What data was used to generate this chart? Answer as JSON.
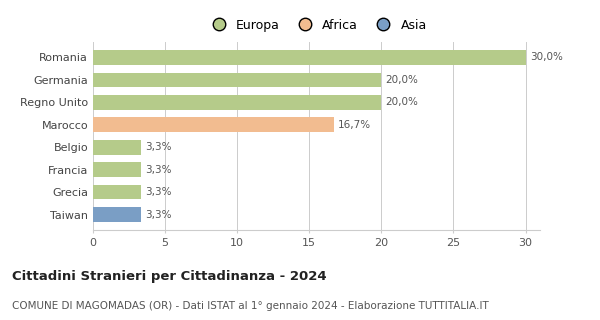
{
  "categories": [
    "Romania",
    "Germania",
    "Regno Unito",
    "Marocco",
    "Belgio",
    "Francia",
    "Grecia",
    "Taiwan"
  ],
  "values": [
    30.0,
    20.0,
    20.0,
    16.7,
    3.3,
    3.3,
    3.3,
    3.3
  ],
  "labels": [
    "30,0%",
    "20,0%",
    "20,0%",
    "16,7%",
    "3,3%",
    "3,3%",
    "3,3%",
    "3,3%"
  ],
  "bar_colors": [
    "#b5cb8a",
    "#b5cb8a",
    "#b5cb8a",
    "#f2bc90",
    "#b5cb8a",
    "#b5cb8a",
    "#b5cb8a",
    "#7a9ec5"
  ],
  "legend_items": [
    {
      "label": "Europa",
      "color": "#b5cb8a"
    },
    {
      "label": "Africa",
      "color": "#f2bc90"
    },
    {
      "label": "Asia",
      "color": "#7a9ec5"
    }
  ],
  "xlim": [
    0,
    31
  ],
  "xticks": [
    0,
    5,
    10,
    15,
    20,
    25,
    30
  ],
  "title": "Cittadini Stranieri per Cittadinanza - 2024",
  "subtitle": "COMUNE DI MAGOMADAS (OR) - Dati ISTAT al 1° gennaio 2024 - Elaborazione TUTTITALIA.IT",
  "title_fontsize": 9.5,
  "subtitle_fontsize": 7.5,
  "background_color": "#ffffff",
  "grid_color": "#cccccc",
  "bar_height": 0.65,
  "label_fontsize": 7.5,
  "tick_fontsize": 8,
  "ytick_fontsize": 8
}
